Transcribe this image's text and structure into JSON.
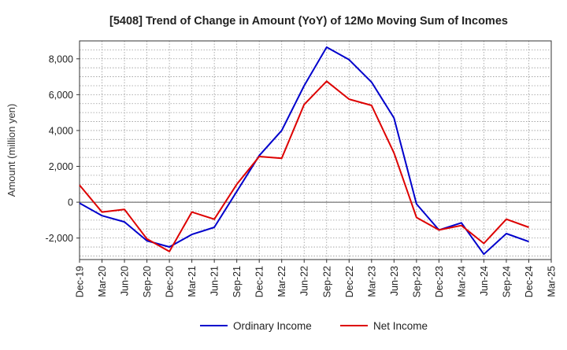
{
  "chart_data": {
    "type": "line",
    "title": "[5408]  Trend of Change in Amount (YoY) of 12Mo Moving Sum of Incomes",
    "xlabel": "",
    "ylabel": "Amount (million yen)",
    "ylim": [
      -3200,
      9000
    ],
    "yticks": [
      -2000,
      0,
      2000,
      4000,
      6000,
      8000
    ],
    "ytick_labels": [
      "-2,000",
      "0",
      "2,000",
      "4,000",
      "6,000",
      "8,000"
    ],
    "categories": [
      "Dec-19",
      "Mar-20",
      "Jun-20",
      "Sep-20",
      "Dec-20",
      "Mar-21",
      "Jun-21",
      "Sep-21",
      "Dec-21",
      "Mar-22",
      "Jun-22",
      "Sep-22",
      "Dec-22",
      "Mar-23",
      "Jun-23",
      "Sep-23",
      "Dec-23",
      "Mar-24",
      "Jun-24",
      "Sep-24",
      "Dec-24",
      "Mar-25"
    ],
    "grid": true,
    "legend_position": "bottom-center",
    "series": [
      {
        "name": "Ordinary Income",
        "color": "#0000cc",
        "values": [
          -50,
          -750,
          -1100,
          -2150,
          -2500,
          -1800,
          -1400,
          600,
          2600,
          4000,
          6500,
          8650,
          7950,
          6700,
          4700,
          -100,
          -1550,
          -1150,
          -2900,
          -1750,
          -2200,
          null
        ]
      },
      {
        "name": "Net Income",
        "color": "#dd0000",
        "values": [
          950,
          -550,
          -400,
          -2050,
          -2750,
          -550,
          -950,
          1000,
          2550,
          2450,
          5450,
          6750,
          5750,
          5400,
          2750,
          -850,
          -1550,
          -1300,
          -2300,
          -950,
          -1400,
          null
        ]
      }
    ]
  }
}
